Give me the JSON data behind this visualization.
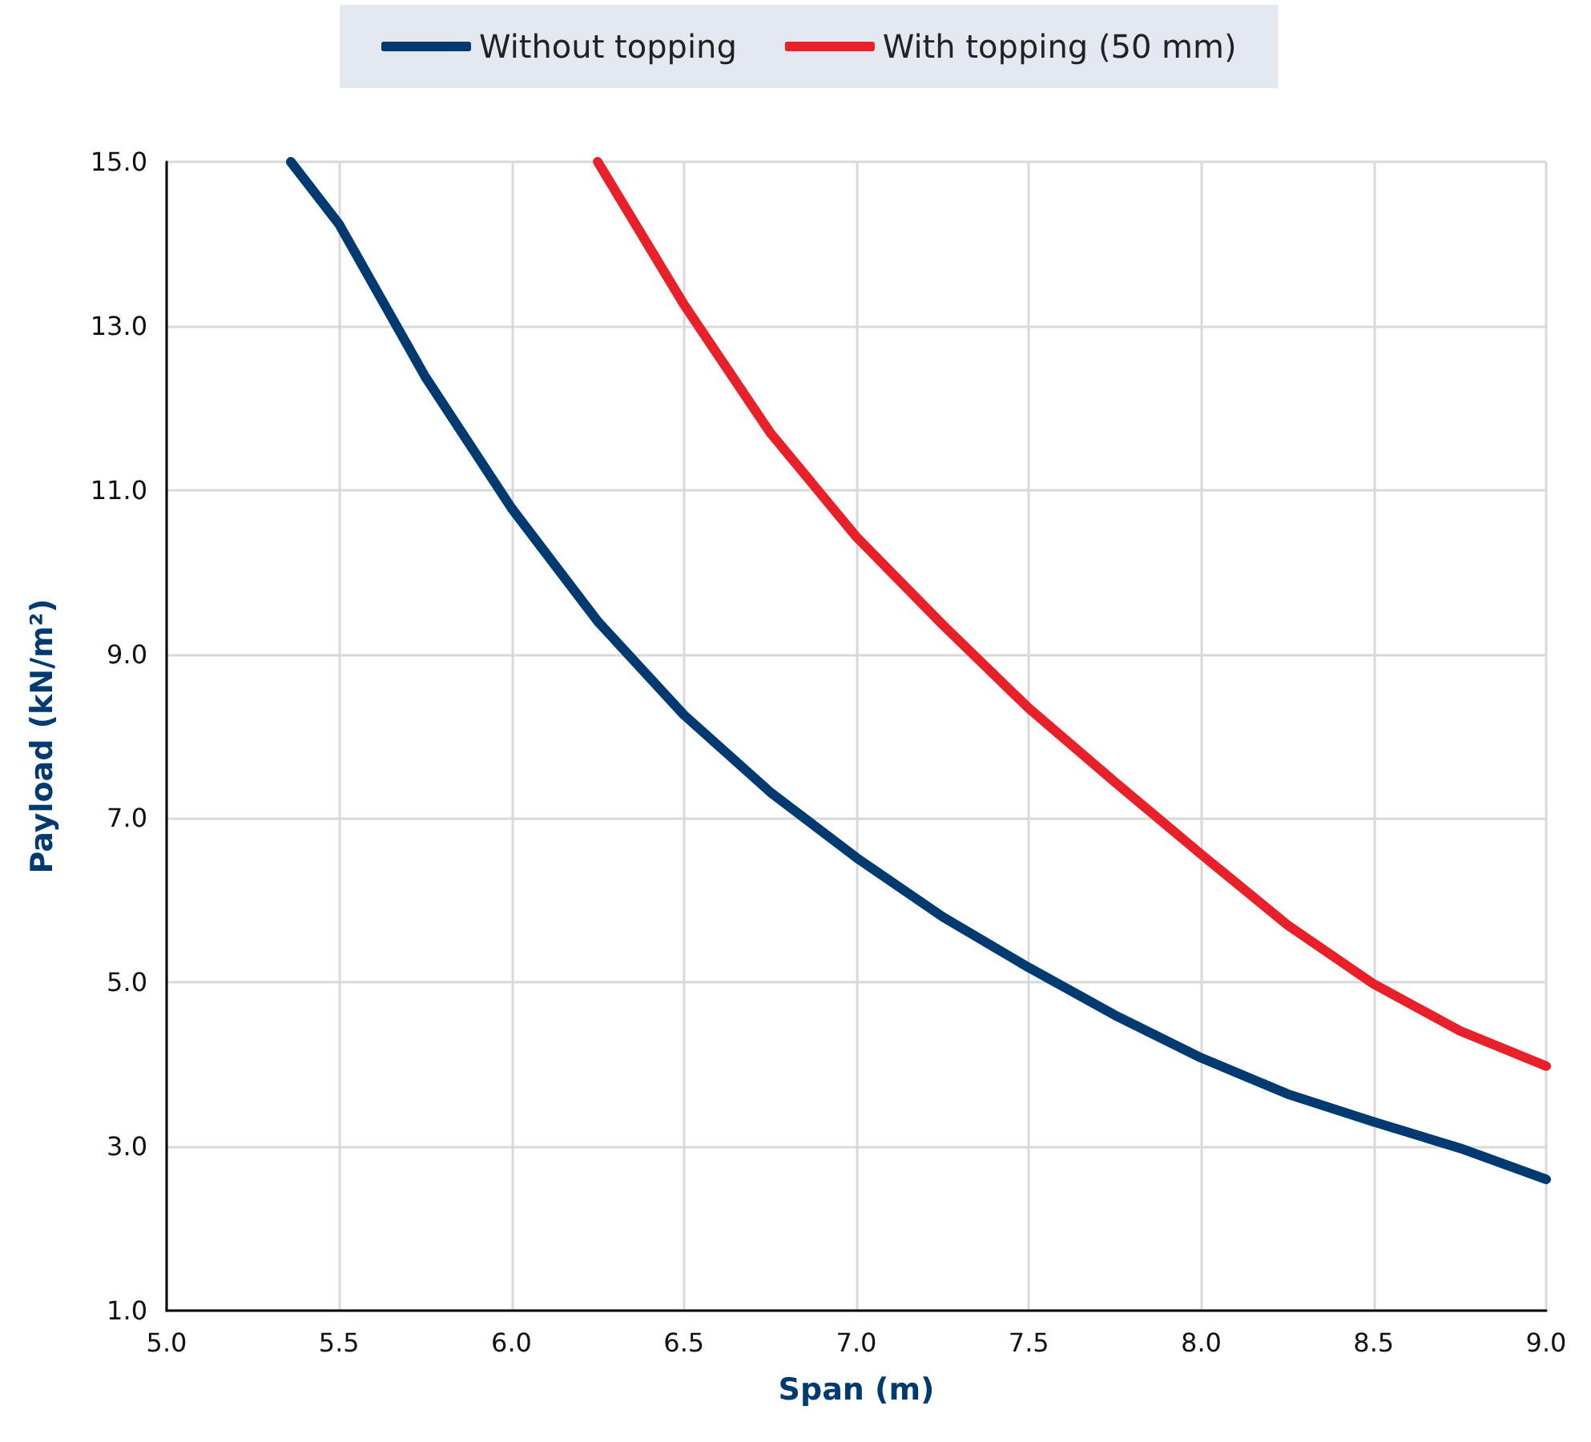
{
  "chart_data": {
    "type": "line",
    "xlabel": "Span (m)",
    "ylabel": "Payload (kN/m²)",
    "series": [
      {
        "name": "Without topping",
        "color": "#003a70",
        "x": [
          5.36,
          5.5,
          5.75,
          6.0,
          6.25,
          6.5,
          6.75,
          7.0,
          7.25,
          7.5,
          7.75,
          8.0,
          8.25,
          8.5,
          8.75,
          9.0
        ],
        "values": [
          15.0,
          14.24,
          12.38,
          10.78,
          9.4,
          8.26,
          7.32,
          6.52,
          5.8,
          5.18,
          4.6,
          4.08,
          3.64,
          3.3,
          2.98,
          2.6
        ]
      },
      {
        "name": "With topping (50 mm)",
        "color": "#e8202a",
        "x": [
          6.25,
          6.5,
          6.75,
          7.0,
          7.25,
          7.5,
          7.75,
          8.0,
          8.25,
          8.5,
          8.75,
          9.0
        ],
        "values": [
          15.0,
          13.26,
          11.7,
          10.43,
          9.36,
          8.34,
          7.44,
          6.56,
          5.7,
          4.98,
          4.41,
          3.98
        ]
      }
    ],
    "xlim": [
      5,
      9
    ],
    "ylim": [
      1,
      15
    ],
    "xticks": [
      {
        "value": 5,
        "label": "5.0"
      },
      {
        "value": 5.5,
        "label": "5.5"
      },
      {
        "value": 6,
        "label": "6.0"
      },
      {
        "value": 6.5,
        "label": "6.5"
      },
      {
        "value": 7,
        "label": "7.0"
      },
      {
        "value": 7.5,
        "label": "7.5"
      },
      {
        "value": 8,
        "label": "8.0"
      },
      {
        "value": 8.5,
        "label": "8.5"
      },
      {
        "value": 9,
        "label": "9.0"
      }
    ],
    "yticks": [
      {
        "value": 1,
        "label": "1.0"
      },
      {
        "value": 3,
        "label": "3.0"
      },
      {
        "value": 5,
        "label": "5.0"
      },
      {
        "value": 7,
        "label": "7.0"
      },
      {
        "value": 9,
        "label": "9.0"
      },
      {
        "value": 11,
        "label": "11.0"
      },
      {
        "value": 13,
        "label": "13.0"
      },
      {
        "value": 15,
        "label": "15.0"
      }
    ],
    "grid": true,
    "legend": "top"
  }
}
